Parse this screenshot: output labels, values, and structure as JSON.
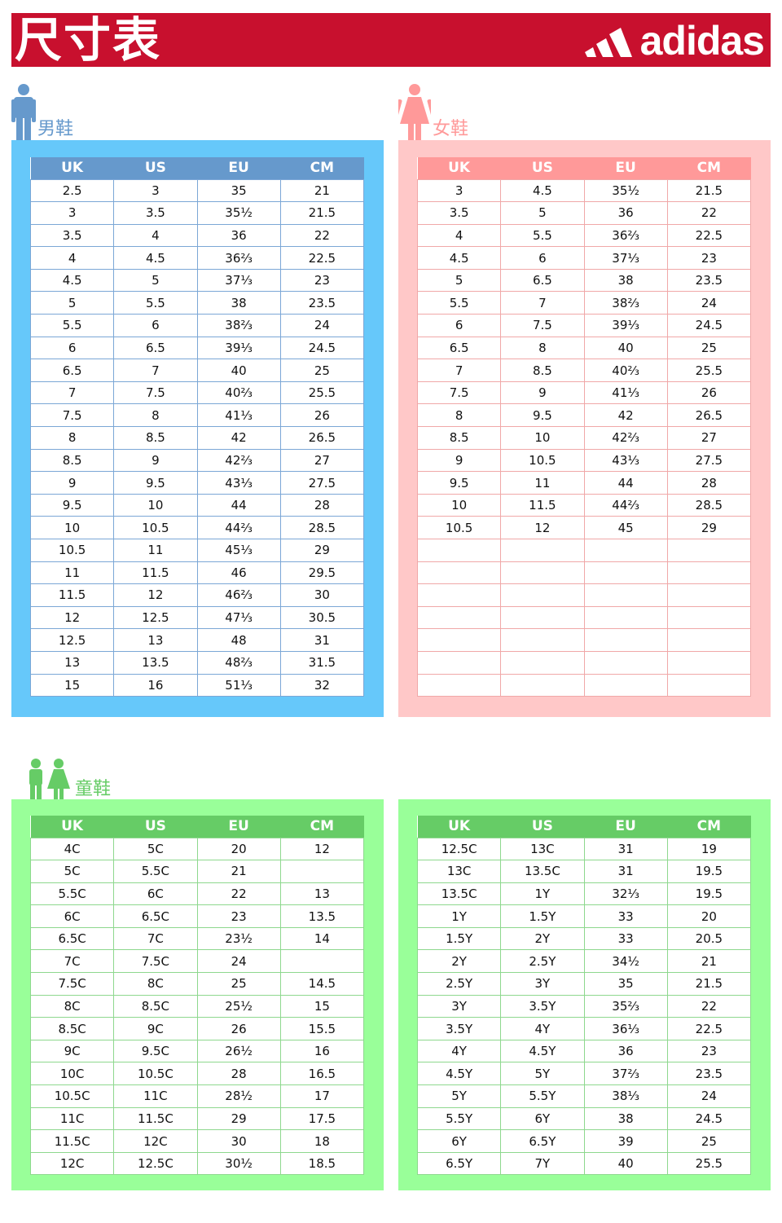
{
  "header": {
    "title": "尺寸表",
    "brand": "adidas"
  },
  "colors": {
    "banner": "#c8102e",
    "men_panel": "#66c8fa",
    "men_header": "#6699cc",
    "women_panel": "#ffc8c8",
    "women_header": "#ff9999",
    "kids_panel": "#99ff99",
    "kids_header": "#66cc66"
  },
  "columns": [
    "UK",
    "US",
    "EU",
    "CM"
  ],
  "men": {
    "label": "男鞋",
    "icon": "man-icon",
    "rows": [
      [
        "2.5",
        "3",
        "35",
        "21"
      ],
      [
        "3",
        "3.5",
        "35½",
        "21.5"
      ],
      [
        "3.5",
        "4",
        "36",
        "22"
      ],
      [
        "4",
        "4.5",
        "36⅔",
        "22.5"
      ],
      [
        "4.5",
        "5",
        "37⅓",
        "23"
      ],
      [
        "5",
        "5.5",
        "38",
        "23.5"
      ],
      [
        "5.5",
        "6",
        "38⅔",
        "24"
      ],
      [
        "6",
        "6.5",
        "39⅓",
        "24.5"
      ],
      [
        "6.5",
        "7",
        "40",
        "25"
      ],
      [
        "7",
        "7.5",
        "40⅔",
        "25.5"
      ],
      [
        "7.5",
        "8",
        "41⅓",
        "26"
      ],
      [
        "8",
        "8.5",
        "42",
        "26.5"
      ],
      [
        "8.5",
        "9",
        "42⅔",
        "27"
      ],
      [
        "9",
        "9.5",
        "43⅓",
        "27.5"
      ],
      [
        "9.5",
        "10",
        "44",
        "28"
      ],
      [
        "10",
        "10.5",
        "44⅔",
        "28.5"
      ],
      [
        "10.5",
        "11",
        "45⅓",
        "29"
      ],
      [
        "11",
        "11.5",
        "46",
        "29.5"
      ],
      [
        "11.5",
        "12",
        "46⅔",
        "30"
      ],
      [
        "12",
        "12.5",
        "47⅓",
        "30.5"
      ],
      [
        "12.5",
        "13",
        "48",
        "31"
      ],
      [
        "13",
        "13.5",
        "48⅔",
        "31.5"
      ],
      [
        "15",
        "16",
        "51⅓",
        "32"
      ]
    ]
  },
  "women": {
    "label": "女鞋",
    "icon": "woman-icon",
    "rows": [
      [
        "3",
        "4.5",
        "35½",
        "21.5"
      ],
      [
        "3.5",
        "5",
        "36",
        "22"
      ],
      [
        "4",
        "5.5",
        "36⅔",
        "22.5"
      ],
      [
        "4.5",
        "6",
        "37⅓",
        "23"
      ],
      [
        "5",
        "6.5",
        "38",
        "23.5"
      ],
      [
        "5.5",
        "7",
        "38⅔",
        "24"
      ],
      [
        "6",
        "7.5",
        "39⅓",
        "24.5"
      ],
      [
        "6.5",
        "8",
        "40",
        "25"
      ],
      [
        "7",
        "8.5",
        "40⅔",
        "25.5"
      ],
      [
        "7.5",
        "9",
        "41⅓",
        "26"
      ],
      [
        "8",
        "9.5",
        "42",
        "26.5"
      ],
      [
        "8.5",
        "10",
        "42⅔",
        "27"
      ],
      [
        "9",
        "10.5",
        "43⅓",
        "27.5"
      ],
      [
        "9.5",
        "11",
        "44",
        "28"
      ],
      [
        "10",
        "11.5",
        "44⅔",
        "28.5"
      ],
      [
        "10.5",
        "12",
        "45",
        "29"
      ],
      [
        "",
        "",
        "",
        ""
      ],
      [
        "",
        "",
        "",
        ""
      ],
      [
        "",
        "",
        "",
        ""
      ],
      [
        "",
        "",
        "",
        ""
      ],
      [
        "",
        "",
        "",
        ""
      ],
      [
        "",
        "",
        "",
        ""
      ],
      [
        "",
        "",
        "",
        ""
      ]
    ]
  },
  "kids": {
    "label": "童鞋",
    "icon": "children-icon",
    "rows": [
      [
        "4C",
        "5C",
        "20",
        "12"
      ],
      [
        "5C",
        "5.5C",
        "21",
        ""
      ],
      [
        "5.5C",
        "6C",
        "22",
        "13"
      ],
      [
        "6C",
        "6.5C",
        "23",
        "13.5"
      ],
      [
        "6.5C",
        "7C",
        "23½",
        "14"
      ],
      [
        "7C",
        "7.5C",
        "24",
        ""
      ],
      [
        "7.5C",
        "8C",
        "25",
        "14.5"
      ],
      [
        "8C",
        "8.5C",
        "25½",
        "15"
      ],
      [
        "8.5C",
        "9C",
        "26",
        "15.5"
      ],
      [
        "9C",
        "9.5C",
        "26½",
        "16"
      ],
      [
        "10C",
        "10.5C",
        "28",
        "16.5"
      ],
      [
        "10.5C",
        "11C",
        "28½",
        "17"
      ],
      [
        "11C",
        "11.5C",
        "29",
        "17.5"
      ],
      [
        "11.5C",
        "12C",
        "30",
        "18"
      ],
      [
        "12C",
        "12.5C",
        "30½",
        "18.5"
      ]
    ]
  },
  "youth": {
    "rows": [
      [
        "12.5C",
        "13C",
        "31",
        "19"
      ],
      [
        "13C",
        "13.5C",
        "31",
        "19.5"
      ],
      [
        "13.5C",
        "1Y",
        "32⅓",
        "19.5"
      ],
      [
        "1Y",
        "1.5Y",
        "33",
        "20"
      ],
      [
        "1.5Y",
        "2Y",
        "33",
        "20.5"
      ],
      [
        "2Y",
        "2.5Y",
        "34½",
        "21"
      ],
      [
        "2.5Y",
        "3Y",
        "35",
        "21.5"
      ],
      [
        "3Y",
        "3.5Y",
        "35⅔",
        "22"
      ],
      [
        "3.5Y",
        "4Y",
        "36⅓",
        "22.5"
      ],
      [
        "4Y",
        "4.5Y",
        "36",
        "23"
      ],
      [
        "4.5Y",
        "5Y",
        "37⅔",
        "23.5"
      ],
      [
        "5Y",
        "5.5Y",
        "38⅓",
        "24"
      ],
      [
        "5.5Y",
        "6Y",
        "38",
        "24.5"
      ],
      [
        "6Y",
        "6.5Y",
        "39",
        "25"
      ],
      [
        "6.5Y",
        "7Y",
        "40",
        "25.5"
      ]
    ]
  }
}
